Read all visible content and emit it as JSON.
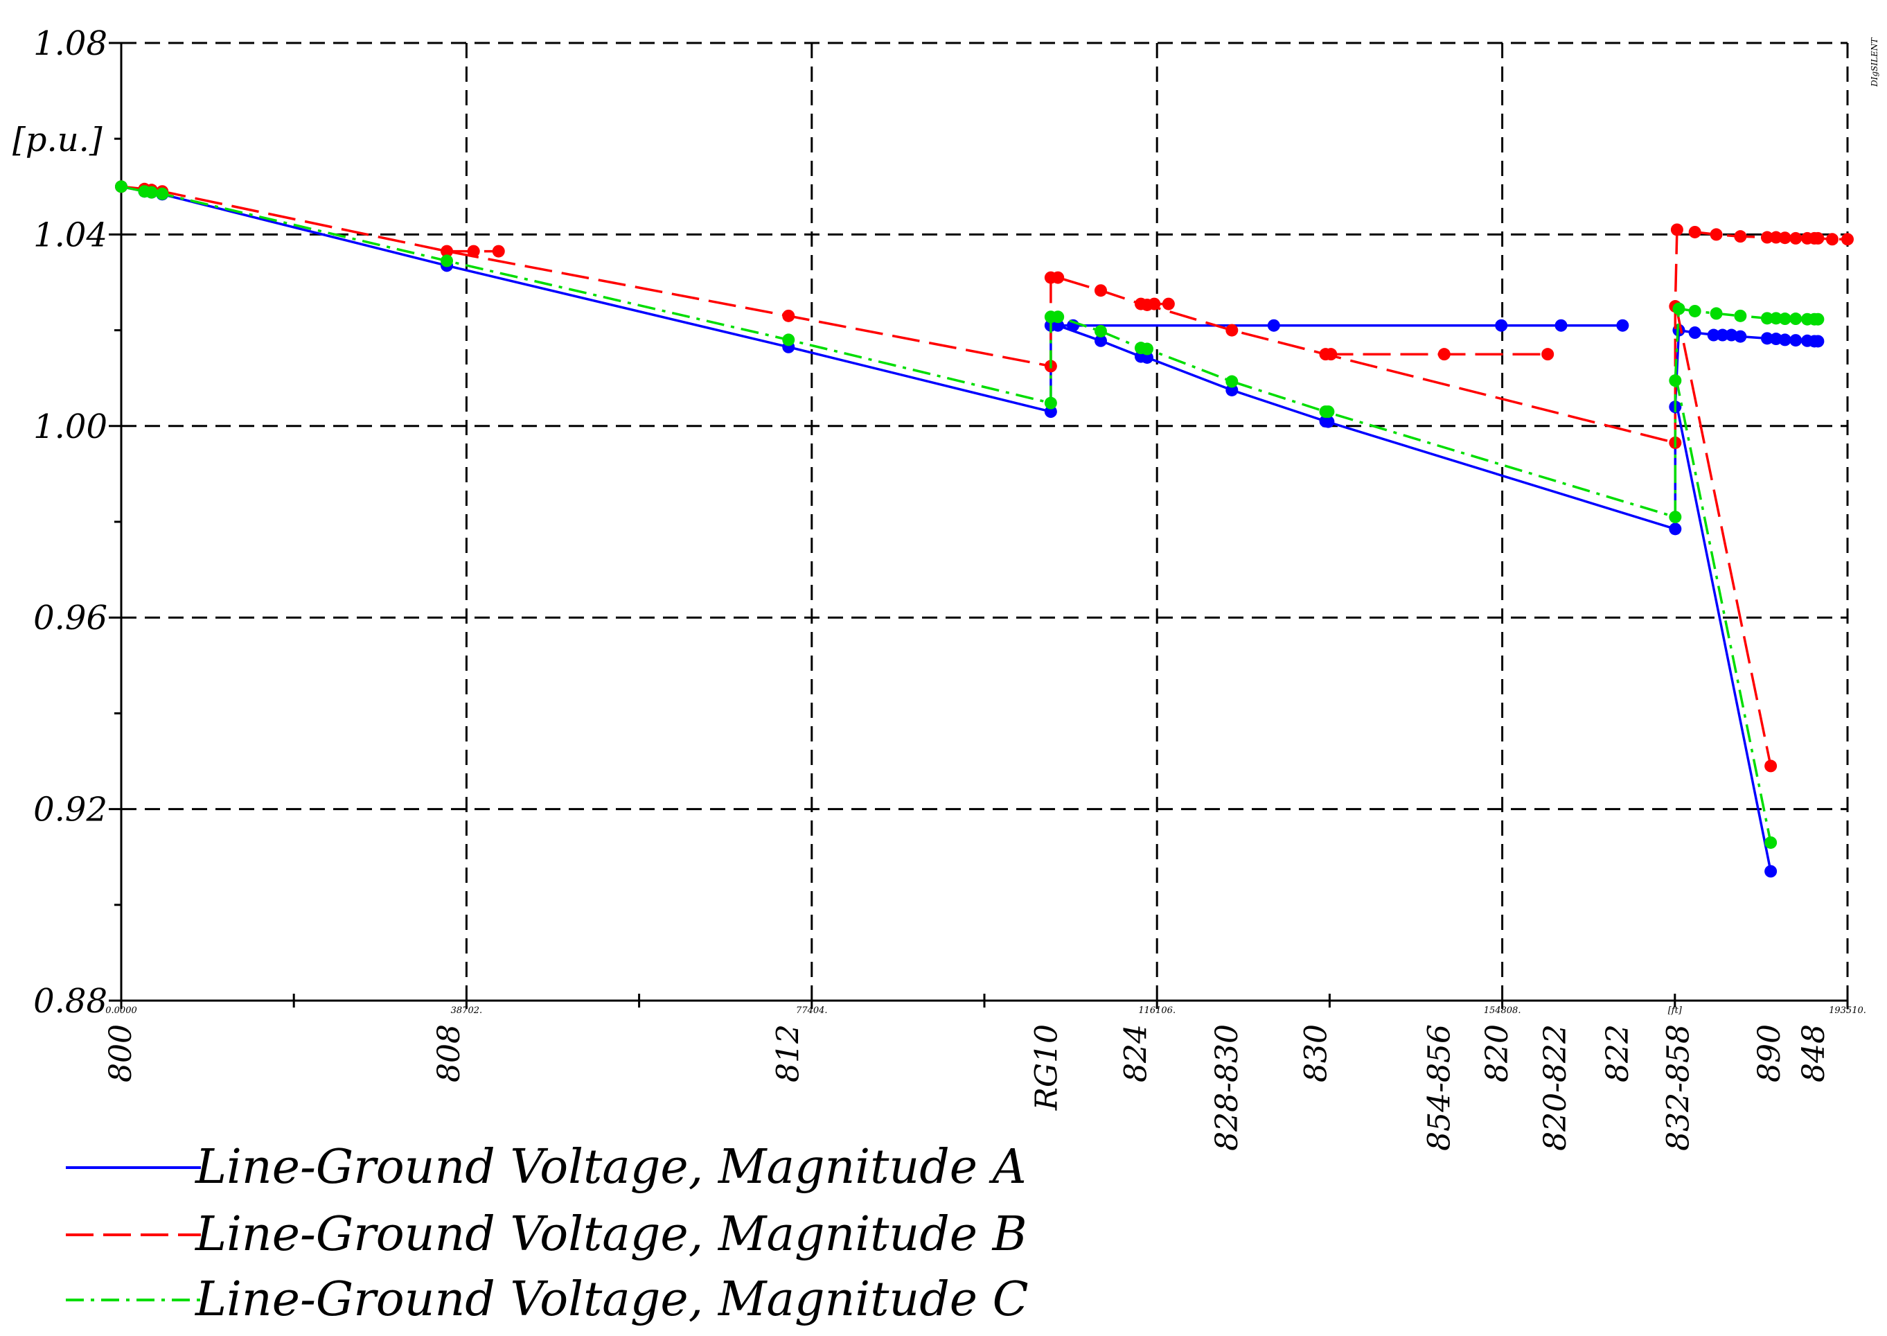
{
  "chart_data": {
    "type": "line",
    "title": "",
    "ylabel": "[p.u.]",
    "xlabel": "[ft]",
    "corner_mark": "DIgSILENT",
    "ylim": [
      0.88,
      1.08
    ],
    "xlim": [
      0,
      193510
    ],
    "y_ticks": [
      {
        "value": 1.08,
        "label": "1.08"
      },
      {
        "value": 1.04,
        "label": "1.04"
      },
      {
        "value": 1.0,
        "label": "1.00"
      },
      {
        "value": 0.96,
        "label": "0.96"
      },
      {
        "value": 0.92,
        "label": "0.92"
      },
      {
        "value": 0.88,
        "label": "0.88"
      }
    ],
    "x_ticks": [
      {
        "value": 0,
        "label": "0.0000"
      },
      {
        "value": 38702,
        "label": "38702."
      },
      {
        "value": 77404,
        "label": "77404."
      },
      {
        "value": 116106,
        "label": "116106."
      },
      {
        "value": 154808,
        "label": "154808."
      },
      {
        "value": 174159,
        "label": "[ft]"
      },
      {
        "value": 193510,
        "label": "193510."
      }
    ],
    "x_grid": [
      0,
      38702,
      77404,
      116106,
      154808,
      193510
    ],
    "y_grid": [
      1.08,
      1.04,
      1.0,
      0.96,
      0.92
    ],
    "x_minor_ticks": [
      19351,
      58053,
      96755,
      135457,
      174159
    ],
    "node_labels": [
      {
        "x": 0,
        "label": "800"
      },
      {
        "x": 36800,
        "label": "808"
      },
      {
        "x": 74800,
        "label": "812"
      },
      {
        "x": 103800,
        "label": "RG10"
      },
      {
        "x": 113800,
        "label": "824"
      },
      {
        "x": 124000,
        "label": "828-830"
      },
      {
        "x": 134000,
        "label": "830"
      },
      {
        "x": 147800,
        "label": "854-856"
      },
      {
        "x": 154300,
        "label": "820"
      },
      {
        "x": 160800,
        "label": "820-822"
      },
      {
        "x": 167800,
        "label": "822"
      },
      {
        "x": 174600,
        "label": "832-858"
      },
      {
        "x": 184800,
        "label": "890"
      },
      {
        "x": 189800,
        "label": "848"
      }
    ],
    "series": [
      {
        "name": "Line-Ground Voltage, Magnitude A",
        "color": "#0000ff",
        "dash": "solid",
        "paths": [
          [
            [
              0,
              1.05
            ],
            [
              2600,
              1.049
            ],
            [
              3400,
              1.0488
            ],
            [
              4600,
              1.0484
            ],
            [
              36500,
              1.0335
            ],
            [
              74800,
              1.0165
            ],
            [
              104200,
              1.003
            ],
            [
              104200,
              1.021
            ],
            [
              105000,
              1.021
            ],
            [
              109800,
              1.0178
            ],
            [
              114300,
              1.0145
            ],
            [
              115000,
              1.0143
            ],
            [
              124500,
              1.0075
            ],
            [
              135000,
              1.001
            ],
            [
              174200,
              0.9785
            ],
            [
              174200,
              1.004
            ],
            [
              174600,
              1.02
            ],
            [
              176400,
              1.0195
            ],
            [
              178800,
              1.019
            ],
            [
              180000,
              1.019
            ],
            [
              181500,
              1.0187
            ],
            [
              184500,
              1.0183
            ],
            [
              186500,
              1.018
            ],
            [
              189000,
              1.0178
            ],
            [
              190200,
              1.0177
            ]
          ],
          [
            [
              104600,
              1.021
            ],
            [
              129200,
              1.021
            ],
            [
              154700,
              1.021
            ],
            [
              161400,
              1.021
            ],
            [
              168300,
              1.021
            ]
          ],
          [
            [
              174300,
              1.005
            ],
            [
              184900,
              0.907
            ]
          ]
        ],
        "markers": [
          [
            0,
            1.05
          ],
          [
            2600,
            1.049
          ],
          [
            3400,
            1.0488
          ],
          [
            4600,
            1.0484
          ],
          [
            36500,
            1.0335
          ],
          [
            74800,
            1.0165
          ],
          [
            104200,
            1.003
          ],
          [
            104200,
            1.021
          ],
          [
            105000,
            1.021
          ],
          [
            106700,
            1.021
          ],
          [
            109800,
            1.0178
          ],
          [
            114300,
            1.0145
          ],
          [
            115000,
            1.0143
          ],
          [
            124500,
            1.0075
          ],
          [
            129200,
            1.021
          ],
          [
            135000,
            1.001
          ],
          [
            135300,
            1.0009
          ],
          [
            154700,
            1.021
          ],
          [
            161400,
            1.021
          ],
          [
            168300,
            1.021
          ],
          [
            174200,
            0.9785
          ],
          [
            174200,
            1.004
          ],
          [
            174600,
            1.02
          ],
          [
            176400,
            1.0195
          ],
          [
            178500,
            1.019
          ],
          [
            179500,
            1.019
          ],
          [
            180500,
            1.019
          ],
          [
            181500,
            1.0187
          ],
          [
            184500,
            1.0183
          ],
          [
            185500,
            1.0182
          ],
          [
            186500,
            1.018
          ],
          [
            187700,
            1.0179
          ],
          [
            189000,
            1.0178
          ],
          [
            189800,
            1.0177
          ],
          [
            190200,
            1.0177
          ],
          [
            184900,
            0.907
          ]
        ]
      },
      {
        "name": "Line-Ground Voltage, Magnitude B",
        "color": "#ff0000",
        "dash": "long-dash",
        "paths": [
          [
            [
              0,
              1.05
            ],
            [
              2600,
              1.0495
            ],
            [
              3400,
              1.0493
            ],
            [
              4600,
              1.049
            ],
            [
              36500,
              1.0365
            ],
            [
              74800,
              1.023
            ],
            [
              104200,
              1.0125
            ],
            [
              104200,
              1.031
            ],
            [
              105000,
              1.031
            ],
            [
              109800,
              1.0283
            ],
            [
              114300,
              1.0255
            ],
            [
              115000,
              1.0253
            ],
            [
              124500,
              1.02
            ],
            [
              135000,
              1.015
            ],
            [
              174200,
              0.9965
            ],
            [
              174200,
              1.025
            ],
            [
              174400,
              1.041
            ],
            [
              176400,
              1.0405
            ],
            [
              178800,
              1.04
            ],
            [
              180000,
              1.0398
            ],
            [
              181500,
              1.0396
            ],
            [
              184500,
              1.0394
            ],
            [
              186500,
              1.0392
            ],
            [
              189000,
              1.0392
            ],
            [
              190200,
              1.0392
            ],
            [
              191800,
              1.039
            ],
            [
              193510,
              1.039
            ]
          ],
          [
            [
              36500,
              1.0365
            ],
            [
              42300,
              1.0365
            ]
          ],
          [
            [
              114300,
              1.0255
            ],
            [
              117400,
              1.0255
            ]
          ],
          [
            [
              135000,
              1.015
            ],
            [
              148300,
              1.015
            ],
            [
              159900,
              1.015
            ]
          ],
          [
            [
              174300,
              1.025
            ],
            [
              184900,
              0.929
            ]
          ]
        ],
        "markers": [
          [
            0,
            1.05
          ],
          [
            2600,
            1.0495
          ],
          [
            3400,
            1.0493
          ],
          [
            4600,
            1.049
          ],
          [
            36500,
            1.0365
          ],
          [
            39500,
            1.0365
          ],
          [
            42300,
            1.0365
          ],
          [
            74800,
            1.023
          ],
          [
            104200,
            1.0125
          ],
          [
            104200,
            1.031
          ],
          [
            105000,
            1.031
          ],
          [
            109800,
            1.0283
          ],
          [
            114300,
            1.0255
          ],
          [
            115000,
            1.0253
          ],
          [
            115800,
            1.0255
          ],
          [
            117400,
            1.0255
          ],
          [
            124500,
            1.02
          ],
          [
            135000,
            1.015
          ],
          [
            135600,
            1.015
          ],
          [
            148300,
            1.015
          ],
          [
            159900,
            1.015
          ],
          [
            174200,
            0.9965
          ],
          [
            174200,
            1.025
          ],
          [
            174400,
            1.041
          ],
          [
            176400,
            1.0405
          ],
          [
            178800,
            1.04
          ],
          [
            181500,
            1.0396
          ],
          [
            184500,
            1.0394
          ],
          [
            185500,
            1.0394
          ],
          [
            186500,
            1.0393
          ],
          [
            187700,
            1.0392
          ],
          [
            189000,
            1.0392
          ],
          [
            189800,
            1.0392
          ],
          [
            190200,
            1.0392
          ],
          [
            191800,
            1.039
          ],
          [
            193510,
            1.039
          ],
          [
            184900,
            0.929
          ]
        ]
      },
      {
        "name": "Line-Ground Voltage, Magnitude C",
        "color": "#00dd00",
        "dash": "dash-dot",
        "paths": [
          [
            [
              0,
              1.05
            ],
            [
              2600,
              1.049
            ],
            [
              3400,
              1.0488
            ],
            [
              4600,
              1.0485
            ],
            [
              36500,
              1.0345
            ],
            [
              74800,
              1.018
            ],
            [
              104200,
              1.0048
            ],
            [
              104200,
              1.0228
            ],
            [
              105000,
              1.0228
            ],
            [
              109800,
              1.0198
            ],
            [
              114300,
              1.0163
            ],
            [
              115000,
              1.0161
            ],
            [
              124500,
              1.0093
            ],
            [
              135000,
              1.003
            ],
            [
              174200,
              0.981
            ],
            [
              174200,
              1.0095
            ],
            [
              174600,
              1.0245
            ],
            [
              176400,
              1.024
            ],
            [
              178800,
              1.0235
            ],
            [
              181500,
              1.023
            ],
            [
              184500,
              1.0225
            ],
            [
              186500,
              1.0224
            ],
            [
              189000,
              1.0223
            ],
            [
              190200,
              1.0223
            ]
          ],
          [
            [
              174300,
              1.01
            ],
            [
              184900,
              0.913
            ]
          ]
        ],
        "markers": [
          [
            0,
            1.05
          ],
          [
            2600,
            1.049
          ],
          [
            3400,
            1.0488
          ],
          [
            4600,
            1.0485
          ],
          [
            36500,
            1.0345
          ],
          [
            74800,
            1.018
          ],
          [
            104200,
            1.0048
          ],
          [
            104200,
            1.0228
          ],
          [
            105000,
            1.0228
          ],
          [
            109800,
            1.0198
          ],
          [
            114300,
            1.0163
          ],
          [
            115000,
            1.0161
          ],
          [
            124500,
            1.0093
          ],
          [
            135000,
            1.003
          ],
          [
            135300,
            1.003
          ],
          [
            174200,
            0.981
          ],
          [
            174200,
            1.0095
          ],
          [
            174600,
            1.0245
          ],
          [
            176400,
            1.024
          ],
          [
            178800,
            1.0235
          ],
          [
            181500,
            1.023
          ],
          [
            184500,
            1.0225
          ],
          [
            185500,
            1.0225
          ],
          [
            186500,
            1.0224
          ],
          [
            187700,
            1.0224
          ],
          [
            189000,
            1.0223
          ],
          [
            189800,
            1.0223
          ],
          [
            190200,
            1.0223
          ],
          [
            184900,
            0.913
          ]
        ]
      }
    ],
    "legend": {
      "position": "bottom-left",
      "entries": [
        {
          "label": "Line-Ground Voltage, Magnitude A",
          "color": "#0000ff",
          "dash": "solid"
        },
        {
          "label": "Line-Ground Voltage, Magnitude B",
          "color": "#ff0000",
          "dash": "long-dash"
        },
        {
          "label": "Line-Ground Voltage, Magnitude C",
          "color": "#00dd00",
          "dash": "dash-dot"
        }
      ]
    }
  }
}
